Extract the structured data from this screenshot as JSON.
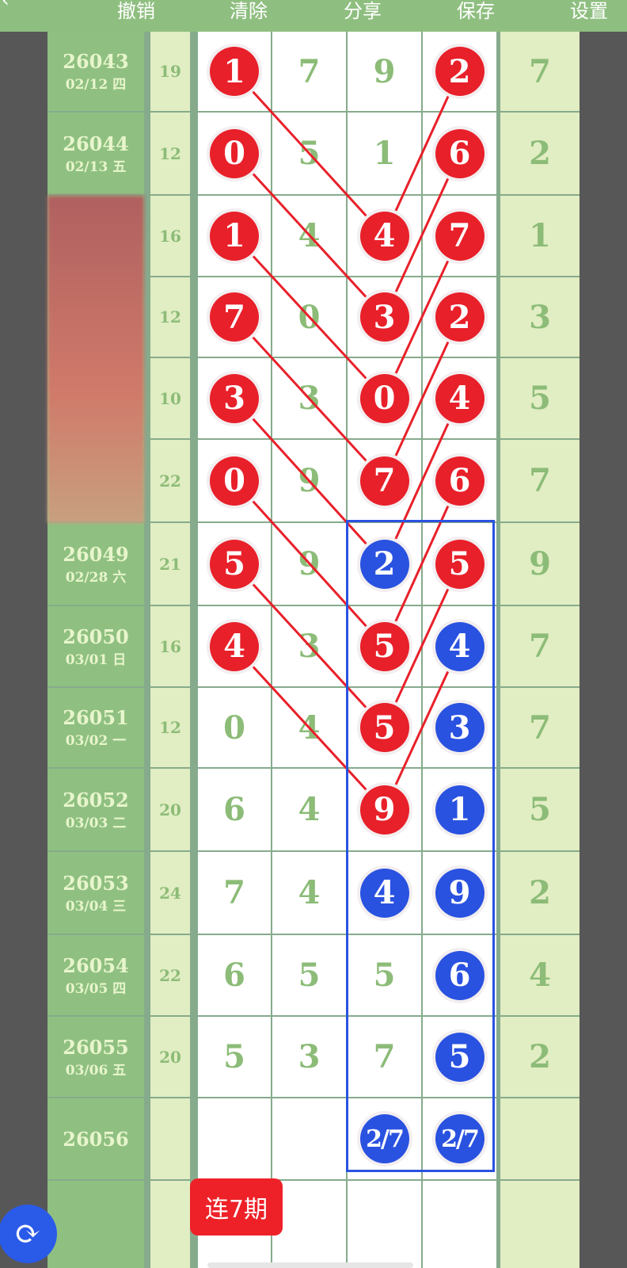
{
  "toolbar": {
    "undo": "撤销",
    "clear": "清除",
    "share": "分享",
    "save": "保存",
    "settings": "设置"
  },
  "colors": {
    "red": "#e8202a",
    "blue": "#2a52e0",
    "green": "#8fc081"
  },
  "rows": [
    {
      "issue": "26043",
      "date": "02/12 四",
      "sum": "19",
      "cells": [
        [
          "1",
          "red"
        ],
        [
          "7",
          ""
        ],
        [
          "9",
          ""
        ],
        [
          "2",
          "red"
        ]
      ],
      "last": "7"
    },
    {
      "issue": "26044",
      "date": "02/13 五",
      "sum": "12",
      "cells": [
        [
          "0",
          "red"
        ],
        [
          "5",
          ""
        ],
        [
          "1",
          ""
        ],
        [
          "6",
          "red"
        ]
      ],
      "last": "2"
    },
    {
      "issue": "",
      "date": "",
      "sum": "16",
      "cells": [
        [
          "1",
          "red"
        ],
        [
          "4",
          ""
        ],
        [
          "4",
          "red"
        ],
        [
          "7",
          "red"
        ]
      ],
      "last": "1"
    },
    {
      "issue": "",
      "date": "",
      "sum": "12",
      "cells": [
        [
          "7",
          "red"
        ],
        [
          "0",
          ""
        ],
        [
          "3",
          "red"
        ],
        [
          "2",
          "red"
        ]
      ],
      "last": "3"
    },
    {
      "issue": "",
      "date": "",
      "sum": "10",
      "cells": [
        [
          "3",
          "red"
        ],
        [
          "3",
          ""
        ],
        [
          "0",
          "red"
        ],
        [
          "4",
          "red"
        ]
      ],
      "last": "5"
    },
    {
      "issue": "",
      "date": "",
      "sum": "22",
      "cells": [
        [
          "0",
          "red"
        ],
        [
          "9",
          ""
        ],
        [
          "7",
          "red"
        ],
        [
          "6",
          "red"
        ]
      ],
      "last": "7"
    },
    {
      "issue": "26049",
      "date": "02/28 六",
      "sum": "21",
      "cells": [
        [
          "5",
          "red"
        ],
        [
          "9",
          ""
        ],
        [
          "2",
          "blue"
        ],
        [
          "5",
          "red"
        ]
      ],
      "last": "9"
    },
    {
      "issue": "26050",
      "date": "03/01 日",
      "sum": "16",
      "cells": [
        [
          "4",
          "red"
        ],
        [
          "3",
          ""
        ],
        [
          "5",
          "red"
        ],
        [
          "4",
          "blue"
        ]
      ],
      "last": "7"
    },
    {
      "issue": "26051",
      "date": "03/02 一",
      "sum": "12",
      "cells": [
        [
          "0",
          ""
        ],
        [
          "4",
          ""
        ],
        [
          "5",
          "red"
        ],
        [
          "3",
          "blue"
        ]
      ],
      "last": "7"
    },
    {
      "issue": "26052",
      "date": "03/03 二",
      "sum": "20",
      "cells": [
        [
          "6",
          ""
        ],
        [
          "4",
          ""
        ],
        [
          "9",
          "red"
        ],
        [
          "1",
          "blue"
        ]
      ],
      "last": "5"
    },
    {
      "issue": "26053",
      "date": "03/04 三",
      "sum": "24",
      "cells": [
        [
          "7",
          ""
        ],
        [
          "4",
          ""
        ],
        [
          "4",
          "blue"
        ],
        [
          "9",
          "blue"
        ]
      ],
      "last": "2"
    },
    {
      "issue": "26054",
      "date": "03/05 四",
      "sum": "22",
      "cells": [
        [
          "6",
          ""
        ],
        [
          "5",
          ""
        ],
        [
          "5",
          ""
        ],
        [
          "6",
          "blue"
        ]
      ],
      "last": "4"
    },
    {
      "issue": "26055",
      "date": "03/06 五",
      "sum": "20",
      "cells": [
        [
          "5",
          ""
        ],
        [
          "3",
          ""
        ],
        [
          "7",
          ""
        ],
        [
          "5",
          "blue"
        ]
      ],
      "last": "2"
    },
    {
      "issue": "26056",
      "date": "",
      "sum": "",
      "cells": [
        [
          "",
          ""
        ],
        [
          "",
          ""
        ],
        [
          "2/7",
          "blue"
        ],
        [
          "2/7",
          "blue"
        ]
      ],
      "last": ""
    },
    {
      "issue": "",
      "date": "",
      "sum": "",
      "cells": [
        [
          "",
          ""
        ],
        [
          "",
          ""
        ],
        [
          "",
          ""
        ],
        [
          "",
          ""
        ]
      ],
      "last": ""
    }
  ],
  "streak_badge": "连7期",
  "refresh_icon": "refresh-icon"
}
